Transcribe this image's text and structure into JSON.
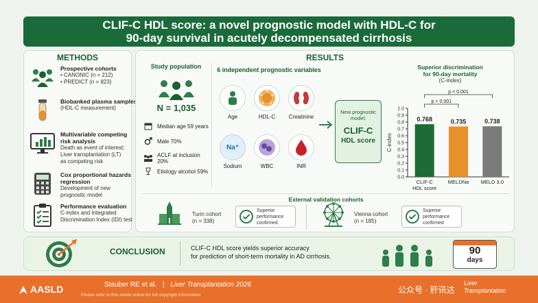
{
  "title": {
    "line1": "CLIF-C HDL score: a novel prognostic model with HDL-C for",
    "line2": "90-day survival in acutely decompensated cirrhosis"
  },
  "methods": {
    "heading": "METHODS",
    "items": [
      {
        "icon": "people-group-icon",
        "head": "Prospective cohorts",
        "lines": [
          "•  CANONIC (n = 212)",
          "•  PREDICT (n = 823)"
        ]
      },
      {
        "icon": "blood-tube-icon",
        "head": "Biobanked plasma samples",
        "lines": [
          "(HDL-C measurement)"
        ]
      },
      {
        "icon": "monitor-chart-icon",
        "head": "Multivariable competing risk analysis",
        "lines": [
          "Death as event of interest;",
          "Liver transplantation (LT)",
          "as competing risk"
        ]
      },
      {
        "icon": "calculator-icon",
        "head": "Cox proportional hazards regression",
        "lines": [
          "Development of new",
          "prognostic model"
        ]
      },
      {
        "icon": "clipboard-check-icon",
        "head": "Performance evaluation",
        "lines": [
          "C-index and Integrated",
          "Discrimination Index (IDI) test"
        ]
      }
    ]
  },
  "results": {
    "heading": "RESULTS",
    "population": {
      "heading": "Study population",
      "n": "N = 1,035",
      "stats": [
        {
          "icon": "calendar-icon",
          "text": "Median age 59 years"
        },
        {
          "icon": "male-icon",
          "text": "Male 70%"
        },
        {
          "icon": "hospital-icon",
          "text": "ACLF at inclusion 20%"
        },
        {
          "icon": "wine-glass-icon",
          "text": "Etiology alcohol 59%"
        }
      ]
    },
    "variables": {
      "heading": "6 independent prognostic variables",
      "items": [
        {
          "label": "Age",
          "icon": "person-icon",
          "color": "#2e7d4a"
        },
        {
          "label": "HDL-C",
          "icon": "hdl-particle-icon",
          "color": "#e8902a"
        },
        {
          "label": "Creatinine",
          "icon": "kidney-icon",
          "color": "#c23a3a"
        },
        {
          "label": "Sodium",
          "icon": "sodium-icon",
          "symbol": "Na⁺",
          "color": "#3a8fc2"
        },
        {
          "label": "WBC",
          "icon": "white-blood-cell-icon",
          "color": "#6a4c9c"
        },
        {
          "label": "INR",
          "icon": "blood-drop-icon",
          "color": "#c8202a"
        }
      ]
    },
    "model": {
      "top": "New prognostic model:",
      "name1": "CLIF-C",
      "name2": "HDL score"
    },
    "discrimination": {
      "heading1": "Superior discrimination",
      "heading2": "for 90-day mortality",
      "heading3": "(C-index)"
    },
    "validation": {
      "heading": "External validation cohorts",
      "cohorts": [
        {
          "icon": "cathedral-icon",
          "name": "Turin cohort",
          "n": "(n = 338)",
          "result1": "Superior",
          "result2": "performance",
          "result3": "confirmed"
        },
        {
          "icon": "ferris-wheel-icon",
          "name": "Vienna cohort",
          "n": "(n = 185)",
          "result1": "Superior",
          "result2": "performance",
          "result3": "confirmed"
        }
      ]
    }
  },
  "chart_data": {
    "type": "bar",
    "title": "Superior discrimination for 90-day mortality (C-index)",
    "ylabel": "C-index",
    "ylim": [
      0.0,
      1.0
    ],
    "yticks": [
      "0.0",
      "0.1",
      "0.2",
      "0.3",
      "0.4",
      "0.5",
      "0.6",
      "0.7",
      "0.8",
      "0.9",
      "1.0"
    ],
    "categories": [
      "CLIF-C HDL score",
      "MELDNa",
      "MELD 3.0"
    ],
    "category_lines": [
      [
        "CLIF-C",
        "HDL score"
      ],
      [
        "MELDNa"
      ],
      [
        "MELD 3.0"
      ]
    ],
    "values": [
      0.768,
      0.735,
      0.738
    ],
    "value_labels": [
      "0.768",
      "0.735",
      "0.738"
    ],
    "colors": [
      "#1e6b35",
      "#e8902a",
      "#7a7a7a"
    ],
    "annotations": [
      {
        "text": "p < 0.001",
        "from": 0,
        "to": 1
      },
      {
        "text": "p < 0.001",
        "from": 0,
        "to": 2
      }
    ]
  },
  "conclusion": {
    "heading": "CONCLUSION",
    "line1": "CLIF-C HDL score yields superior accuracy",
    "line2": "for prediction of short-term mortality in AD cirrhosis.",
    "days_num": "90",
    "days_label": "days"
  },
  "footer": {
    "org": "AASLD",
    "citation": "Stauber RE et al.",
    "sep": "|",
    "journal": "Liver Transplantation 2026",
    "note": "Please refer to this article online for full copyright information",
    "watermark": "公众号 · 肝讯达",
    "journal_logo1": "Liver",
    "journal_logo2": "Transplantation"
  }
}
